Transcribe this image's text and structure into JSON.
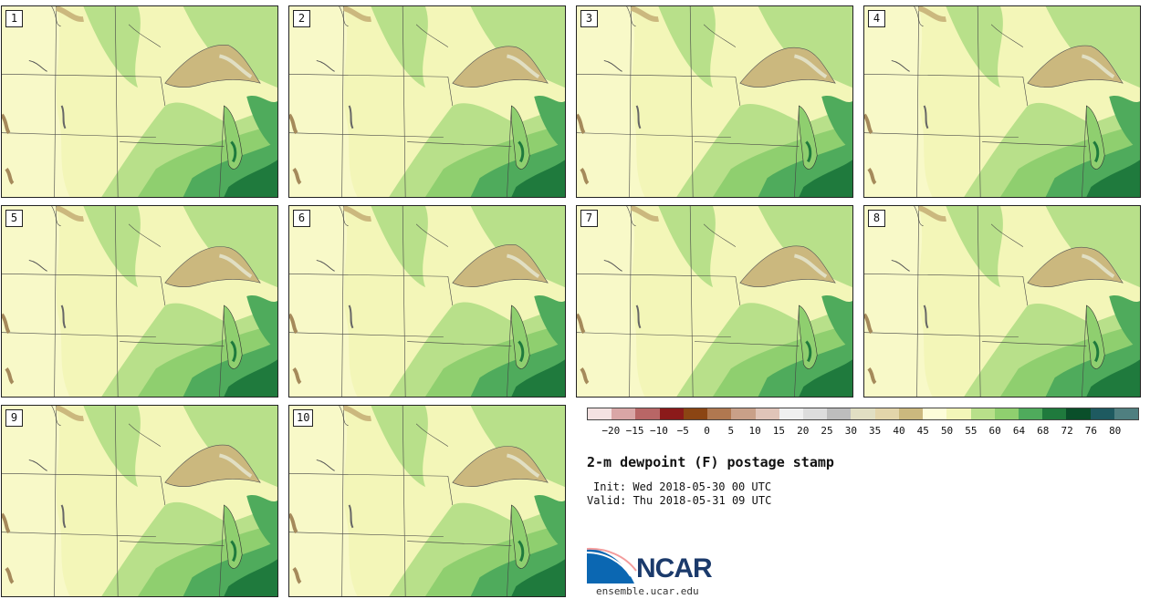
{
  "panels": [
    {
      "label": "1"
    },
    {
      "label": "2"
    },
    {
      "label": "3"
    },
    {
      "label": "4"
    },
    {
      "label": "5"
    },
    {
      "label": "6"
    },
    {
      "label": "7"
    },
    {
      "label": "8"
    },
    {
      "label": "9"
    },
    {
      "label": "10"
    }
  ],
  "colorbar": {
    "colors": [
      "#f4e1e1",
      "#d9a6a6",
      "#b86666",
      "#8b1a1a",
      "#8b4513",
      "#b07850",
      "#c9a088",
      "#e0c4b8",
      "#f0f0f0",
      "#dddddd",
      "#bdbdbd",
      "#e1dfc3",
      "#e3d5aa",
      "#cbb87e",
      "#fdfdd9",
      "#f3f6b8",
      "#b8e08a",
      "#8fcf6f",
      "#4fab5c",
      "#1f7a3d",
      "#0a4f2a",
      "#1e5a60",
      "#4f7f80"
    ],
    "ticks": [
      "−20",
      "−15",
      "−10",
      "−5",
      "0",
      "5",
      "10",
      "15",
      "20",
      "25",
      "30",
      "35",
      "40",
      "45",
      "50",
      "55",
      "60",
      "64",
      "68",
      "72",
      "76",
      "80"
    ]
  },
  "title": "2-m dewpoint (F) postage stamp",
  "init": "Init: Wed 2018-05-30 00 UTC",
  "valid": "Valid: Thu 2018-05-31 09 UTC",
  "logo": {
    "text": "NCAR",
    "url": "ensemble.ucar.edu"
  }
}
